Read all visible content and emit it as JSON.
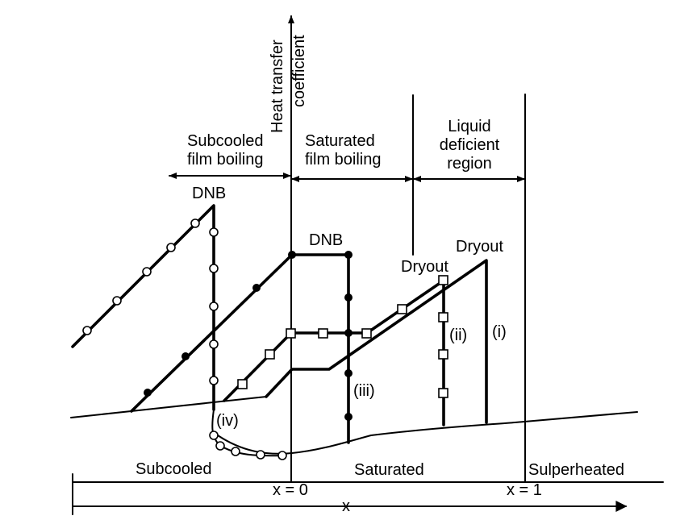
{
  "axis": {
    "y_label_line1": "Heat transfer",
    "y_label_line2": "coefficient",
    "x_label": "x",
    "x_zero": "x = 0",
    "x_one": "x = 1"
  },
  "regions": {
    "subcooled_film_line1": "Subcooled",
    "subcooled_film_line2": "film boiling",
    "saturated_film_line1": "Saturated",
    "saturated_film_line2": "film boiling",
    "liquid_deficient_line1": "Liquid",
    "liquid_deficient_line2": "deficient",
    "liquid_deficient_line3": "region"
  },
  "zones": {
    "subcooled": "Subcooled",
    "saturated": "Saturated",
    "superheated": "Sulperheated"
  },
  "annotations": {
    "dnb_1": "DNB",
    "dnb_2": "DNB",
    "dryout_1": "Dryout",
    "dryout_2": "Dryout",
    "curve_i": "(i)",
    "curve_ii": "(ii)",
    "curve_iii": "(iii)",
    "curve_iv": "(iv)"
  }
}
